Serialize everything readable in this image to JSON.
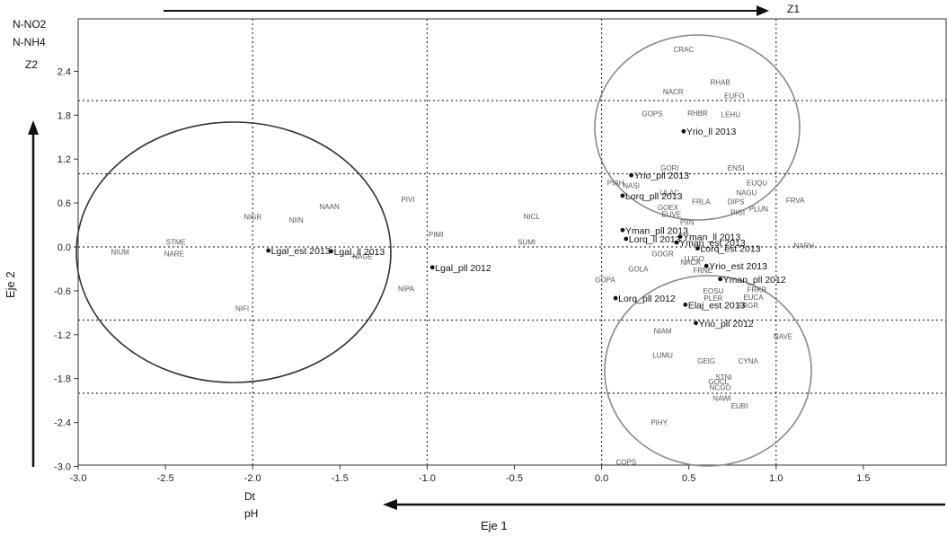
{
  "chart_data": {
    "type": "scatter",
    "xlabel": "Eje 1",
    "ylabel": "Eje 2",
    "xlim": [
      -3.0,
      2.0
    ],
    "ylim": [
      -3.0,
      3.0
    ],
    "x_ticks": [
      "-3.0",
      "-2.5",
      "-2.0",
      "-1.5",
      "-1.0",
      "-0.5",
      "0.0",
      "0.5",
      "1.0",
      "1.5"
    ],
    "y_ticks": [
      "2.4",
      "1.8",
      "1.2",
      "0.6",
      "0.0",
      "-0.6",
      "-1.2",
      "-1.8",
      "-2.4",
      "-3.0"
    ],
    "grid": "dotted reference lines at x = -2.0, -1.0, 0.0, 1.0 and y = 2.0, 1.0, 0.0, -1.0, -2.0",
    "annotations": {
      "top_left": [
        "N-NO2",
        "N-NH4",
        "Z2"
      ],
      "top_right": "Z1",
      "bottom_left": [
        "Dt",
        "pH"
      ]
    },
    "samples": [
      {
        "label": "Yrio_ll 2013",
        "x": 0.47,
        "y": 1.58
      },
      {
        "label": "Yrio_pll 2013",
        "x": 0.17,
        "y": 0.98
      },
      {
        "label": "Lorq_pll 2013",
        "x": 0.12,
        "y": 0.7
      },
      {
        "label": "Yman_pll 2013",
        "x": 0.12,
        "y": 0.23
      },
      {
        "label": "Lorq_ll 2013",
        "x": 0.14,
        "y": 0.11
      },
      {
        "label": "Yman_ll 2013",
        "x": 0.45,
        "y": 0.14
      },
      {
        "label": "Yman_est 2013",
        "x": 0.43,
        "y": 0.06
      },
      {
        "label": "Lorq_est 2013",
        "x": 0.55,
        "y": -0.02
      },
      {
        "label": "Yrio_est 2013",
        "x": 0.6,
        "y": -0.26
      },
      {
        "label": "Yman_pll 2012",
        "x": 0.68,
        "y": -0.44
      },
      {
        "label": "Lorq_pll 2012",
        "x": 0.08,
        "y": -0.7
      },
      {
        "label": "Elaj_est 2013",
        "x": 0.48,
        "y": -0.79
      },
      {
        "label": "Yrio_pll 2012",
        "x": 0.54,
        "y": -1.04
      },
      {
        "label": "Lgal_est 2013",
        "x": -1.91,
        "y": -0.05
      },
      {
        "label": "Lgal_ll 2013",
        "x": -1.55,
        "y": -0.06
      },
      {
        "label": "Lgal_pll 2012",
        "x": -0.97,
        "y": -0.28
      }
    ],
    "species": [
      {
        "label": "CRAC",
        "x": 0.47,
        "y": 2.7
      },
      {
        "label": "RHAB",
        "x": 0.68,
        "y": 2.25
      },
      {
        "label": "NACR",
        "x": 0.41,
        "y": 2.12
      },
      {
        "label": "EUFO",
        "x": 0.76,
        "y": 2.07
      },
      {
        "label": "GOPS",
        "x": 0.29,
        "y": 1.82
      },
      {
        "label": "RHBR",
        "x": 0.55,
        "y": 1.83
      },
      {
        "label": "LEHU",
        "x": 0.74,
        "y": 1.81
      },
      {
        "label": "GORI",
        "x": 0.39,
        "y": 1.08
      },
      {
        "label": "ENSI",
        "x": 0.77,
        "y": 1.08
      },
      {
        "label": "PIAH",
        "x": 0.08,
        "y": 0.88
      },
      {
        "label": "NASI",
        "x": 0.17,
        "y": 0.84
      },
      {
        "label": "EUQU",
        "x": 0.89,
        "y": 0.88
      },
      {
        "label": "ULAC",
        "x": 0.39,
        "y": 0.74
      },
      {
        "label": "NAGU",
        "x": 0.83,
        "y": 0.74
      },
      {
        "label": "FRVA",
        "x": 1.11,
        "y": 0.64
      },
      {
        "label": "FRLA",
        "x": 0.57,
        "y": 0.62
      },
      {
        "label": "DIPS",
        "x": 0.77,
        "y": 0.62
      },
      {
        "label": "GOEX",
        "x": 0.38,
        "y": 0.54
      },
      {
        "label": "PLUN",
        "x": 0.9,
        "y": 0.52
      },
      {
        "label": "EUVE",
        "x": 0.4,
        "y": 0.45
      },
      {
        "label": "PIGI",
        "x": 0.78,
        "y": 0.47
      },
      {
        "label": "PIIN",
        "x": 0.49,
        "y": 0.34
      },
      {
        "label": "NARH",
        "x": 1.16,
        "y": 0.02
      },
      {
        "label": "GOGR",
        "x": 0.35,
        "y": -0.09
      },
      {
        "label": "LUGO",
        "x": 0.53,
        "y": -0.16
      },
      {
        "label": "NACA",
        "x": 0.51,
        "y": -0.21
      },
      {
        "label": "GOLA",
        "x": 0.21,
        "y": -0.3
      },
      {
        "label": "FRNE",
        "x": 0.58,
        "y": -0.32
      },
      {
        "label": "GOPA",
        "x": 0.02,
        "y": -0.45
      },
      {
        "label": "EOSU",
        "x": 0.64,
        "y": -0.6
      },
      {
        "label": "FRKR",
        "x": 0.89,
        "y": -0.58
      },
      {
        "label": "PLER",
        "x": 0.64,
        "y": -0.7
      },
      {
        "label": "EUCA",
        "x": 0.87,
        "y": -0.69
      },
      {
        "label": "FRGR",
        "x": 0.84,
        "y": -0.8
      },
      {
        "label": "NIAM",
        "x": 0.35,
        "y": -1.15
      },
      {
        "label": "NAVE",
        "x": 1.04,
        "y": -1.22
      },
      {
        "label": "LUMU",
        "x": 0.35,
        "y": -1.48
      },
      {
        "label": "GEIG",
        "x": 0.6,
        "y": -1.56
      },
      {
        "label": "CYNA",
        "x": 0.84,
        "y": -1.56
      },
      {
        "label": "STNI",
        "x": 0.7,
        "y": -1.78
      },
      {
        "label": "GOCL",
        "x": 0.67,
        "y": -1.84
      },
      {
        "label": "NCGO",
        "x": 0.68,
        "y": -1.92
      },
      {
        "label": "NAWI",
        "x": 0.69,
        "y": -2.07
      },
      {
        "label": "EUBI",
        "x": 0.79,
        "y": -2.17
      },
      {
        "label": "PIHY",
        "x": 0.33,
        "y": -2.4
      },
      {
        "label": "COPS",
        "x": 0.14,
        "y": -2.94
      },
      {
        "label": "PIVI",
        "x": -1.11,
        "y": 0.65
      },
      {
        "label": "NAAN",
        "x": -1.56,
        "y": 0.55
      },
      {
        "label": "NIGR",
        "x": -2.0,
        "y": 0.41
      },
      {
        "label": "NIIN",
        "x": -1.75,
        "y": 0.37
      },
      {
        "label": "NICL",
        "x": -0.4,
        "y": 0.42
      },
      {
        "label": "PIMI",
        "x": -0.95,
        "y": 0.17
      },
      {
        "label": "SUMI",
        "x": -0.43,
        "y": 0.07
      },
      {
        "label": "STME",
        "x": -2.44,
        "y": 0.07
      },
      {
        "label": "NIUM",
        "x": -2.76,
        "y": -0.07
      },
      {
        "label": "NARE",
        "x": -2.45,
        "y": -0.09
      },
      {
        "label": "NAGE",
        "x": -1.37,
        "y": -0.13
      },
      {
        "label": "NIPA",
        "x": -1.12,
        "y": -0.57
      },
      {
        "label": "NIFI",
        "x": -2.06,
        "y": -0.84
      }
    ]
  }
}
